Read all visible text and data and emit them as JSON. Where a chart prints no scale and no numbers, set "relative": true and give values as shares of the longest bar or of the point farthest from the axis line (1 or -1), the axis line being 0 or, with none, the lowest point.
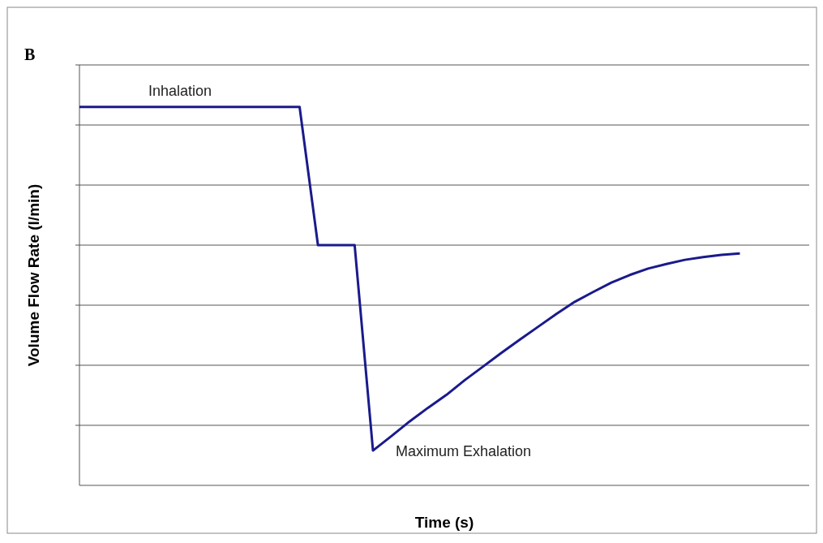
{
  "chart_data": {
    "type": "line",
    "title": "B",
    "xlabel": "Time (s)",
    "ylabel": "Volume Flow Rate (l/min)",
    "relative": true,
    "grid": "y",
    "tick_labels": false,
    "marker": "none",
    "line_style": "solid",
    "categories": [
      null,
      null,
      null,
      null,
      null,
      null,
      null,
      null,
      null,
      null,
      null,
      null,
      null,
      null,
      null,
      null,
      null,
      null,
      null,
      null,
      null,
      null,
      null,
      null,
      null,
      null,
      null,
      null,
      null,
      null,
      null,
      null,
      null,
      null,
      null,
      null,
      null
    ],
    "series": [
      {
        "color": "#1a1a8c",
        "values": [
          1,
          1,
          1,
          1,
          1,
          1,
          1,
          1,
          1,
          1,
          1,
          1,
          1,
          0.635,
          0.635,
          0.635,
          0.092,
          0.13,
          0.169,
          0.205,
          0.239,
          0.278,
          0.314,
          0.35,
          0.385,
          0.419,
          0.453,
          0.485,
          0.511,
          0.536,
          0.556,
          0.573,
          0.585,
          0.596,
          0.603,
          0.609,
          0.613
        ]
      }
    ],
    "annotations": [
      "Inhalation",
      "Maximum Exhalation"
    ]
  }
}
